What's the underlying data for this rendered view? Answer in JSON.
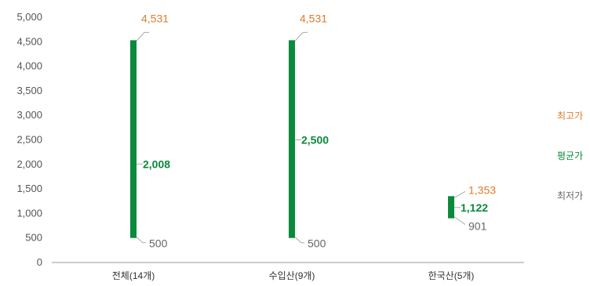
{
  "chart_data": {
    "type": "range-bar",
    "categories": [
      "전체(14개)",
      "수입산(9개)",
      "한국산(5개)"
    ],
    "series": [
      {
        "name": "최고가",
        "values": [
          4531,
          4531,
          1353
        ],
        "labels": [
          "4,531",
          "4,531",
          "1,353"
        ],
        "color": "#e07b2a"
      },
      {
        "name": "평균가",
        "values": [
          2008,
          2500,
          1122
        ],
        "labels": [
          "2,008",
          "2,500",
          "1,122"
        ],
        "color": "#0a8a3c"
      },
      {
        "name": "최저가",
        "values": [
          500,
          500,
          901
        ],
        "labels": [
          "500",
          "500",
          "901"
        ],
        "color": "#666666"
      }
    ],
    "yticks": [
      0,
      500,
      1000,
      1500,
      2000,
      2500,
      3000,
      3500,
      4000,
      4500,
      5000
    ],
    "ytick_labels": [
      "0",
      "500",
      "1,000",
      "1,500",
      "2,000",
      "2,500",
      "3,000",
      "3,500",
      "4,000",
      "4,500",
      "5,000"
    ],
    "ylim": [
      0,
      5000
    ],
    "legend_position": "right",
    "bar_color": "#0a8a3c",
    "axis_color": "#999999",
    "leader_color": "#aaaaaa"
  }
}
